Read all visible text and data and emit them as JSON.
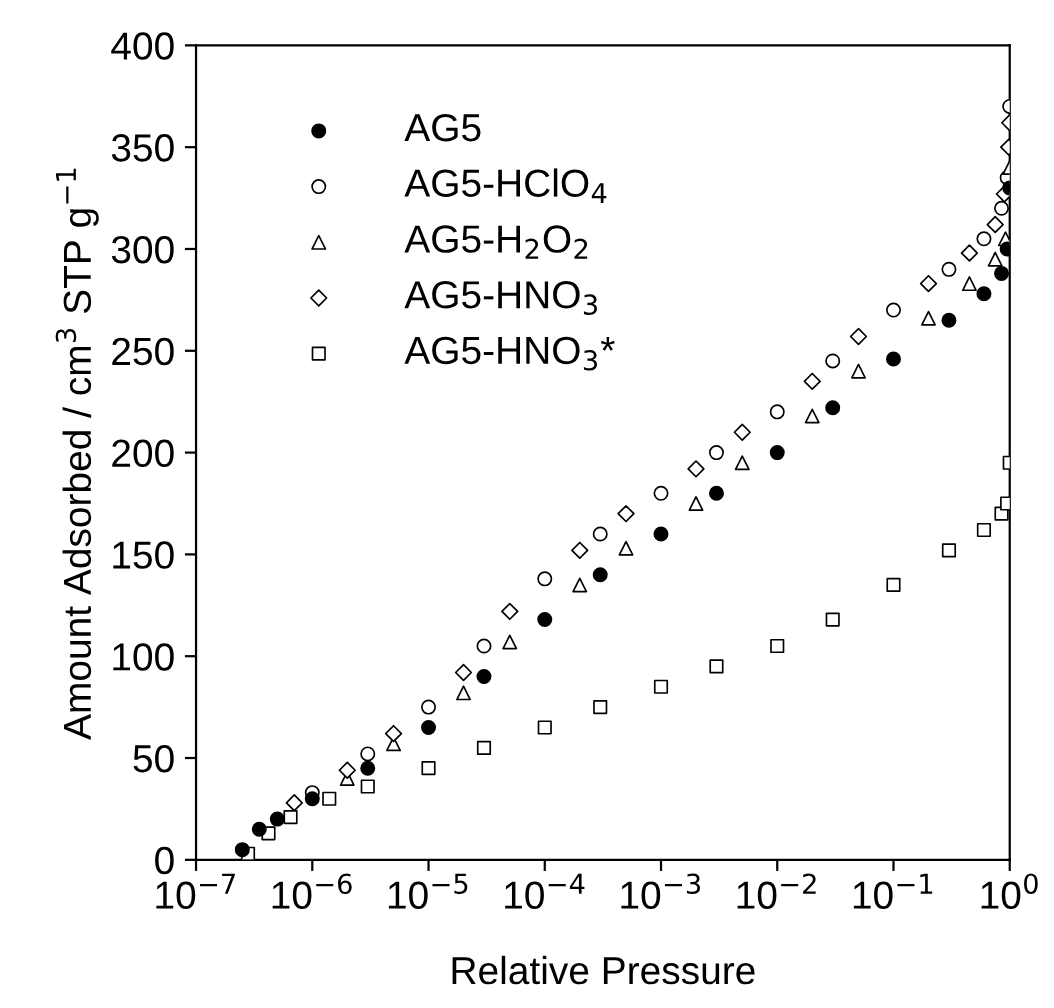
{
  "chart_data": {
    "type": "scatter",
    "xlabel": "Relative Pressure",
    "ylabel": "Amount Adsorbed / cm$^{3}$ STP g$^{−1}$",
    "log": "x",
    "grid": false,
    "legend": "top left",
    "xlim": [
      1e-07,
      1
    ],
    "ylim": [
      0,
      400
    ],
    "xticks": [
      {
        "value": 1e-07,
        "label": "10$^{−7}$"
      },
      {
        "value": 1e-06,
        "label": "10$^{−6}$"
      },
      {
        "value": 1e-05,
        "label": "10$^{−5}$"
      },
      {
        "value": 0.0001,
        "label": "10$^{−4}$"
      },
      {
        "value": 0.001,
        "label": "10$^{−3}$"
      },
      {
        "value": 0.01,
        "label": "10$^{−2}$"
      },
      {
        "value": 0.1,
        "label": "10$^{−1}$"
      },
      {
        "value": 1,
        "label": "10$^{0}$"
      }
    ],
    "yticks": [
      0,
      50,
      100,
      150,
      200,
      250,
      300,
      350,
      400
    ],
    "series": [
      {
        "name": "AG5",
        "color": "#000000",
        "marker": "circle",
        "x": [
          2.5e-07,
          3.5e-07,
          5e-07,
          1e-06,
          3e-06,
          1e-05,
          3e-05,
          0.0001,
          0.0003,
          0.001,
          0.003,
          0.01,
          0.03,
          0.1,
          0.3,
          0.6,
          0.85,
          0.95,
          1.0
        ],
        "values": [
          5,
          15,
          20,
          30,
          45,
          65,
          90,
          118,
          140,
          160,
          180,
          200,
          222,
          246,
          265,
          278,
          288,
          300,
          330
        ]
      },
      {
        "name": "AG5-HClO$_{4}$",
        "color": "#ffffff",
        "marker": "circle",
        "x": [
          1e-06,
          3e-06,
          1e-05,
          3e-05,
          0.0001,
          0.0003,
          0.001,
          0.003,
          0.01,
          0.03,
          0.1,
          0.3,
          0.6,
          0.85,
          0.95,
          1.0
        ],
        "values": [
          33,
          52,
          75,
          105,
          138,
          160,
          180,
          200,
          220,
          245,
          270,
          290,
          305,
          320,
          335,
          370
        ]
      },
      {
        "name": "AG5-H$_{2}$O$_{2}$",
        "color": "#ffffff",
        "marker": "triangle",
        "x": [
          2e-06,
          5e-06,
          2e-05,
          5e-05,
          0.0002,
          0.0005,
          0.002,
          0.005,
          0.02,
          0.05,
          0.2,
          0.45,
          0.75,
          0.92,
          1.0
        ],
        "values": [
          40,
          57,
          82,
          107,
          135,
          153,
          175,
          195,
          218,
          240,
          266,
          283,
          295,
          305,
          340
        ]
      },
      {
        "name": "AG5-HNO$_{3}$",
        "color": "#ffffff",
        "marker": "diamond",
        "x": [
          7e-07,
          2e-06,
          5e-06,
          2e-05,
          5e-05,
          0.0002,
          0.0005,
          0.002,
          0.005,
          0.02,
          0.05,
          0.2,
          0.45,
          0.75,
          0.9,
          0.98,
          1.0
        ],
        "values": [
          28,
          44,
          62,
          92,
          122,
          152,
          170,
          192,
          210,
          235,
          257,
          283,
          298,
          312,
          327,
          350,
          362
        ]
      },
      {
        "name": "AG5-HNO$_{3}$*",
        "color": "#ffffff",
        "marker": "square",
        "x": [
          2.8e-07,
          4.2e-07,
          6.5e-07,
          1.4e-06,
          3e-06,
          1e-05,
          3e-05,
          0.0001,
          0.0003,
          0.001,
          0.003,
          0.01,
          0.03,
          0.1,
          0.3,
          0.6,
          0.85,
          0.95,
          1.0
        ],
        "values": [
          3,
          13,
          21,
          30,
          36,
          45,
          55,
          65,
          75,
          85,
          95,
          105,
          118,
          135,
          152,
          162,
          170,
          175,
          195
        ]
      }
    ]
  }
}
